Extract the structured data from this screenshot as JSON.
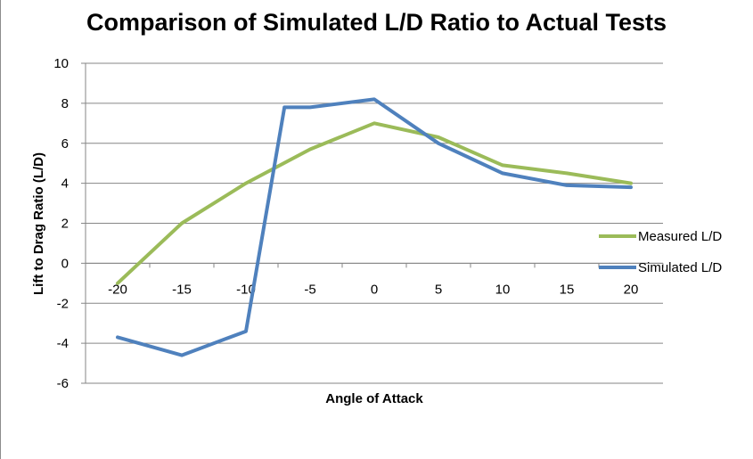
{
  "chart_data": {
    "type": "line",
    "title": "Comparison of Simulated L/D Ratio to Actual Tests",
    "xlabel": "Angle of Attack",
    "ylabel": "Lift to Drag Ratio (L/D)",
    "x": [
      -20,
      -15,
      -10,
      -5,
      0,
      5,
      10,
      15,
      20
    ],
    "ylim": [
      -6,
      10
    ],
    "yticks": [
      -6,
      -4,
      -2,
      0,
      2,
      4,
      6,
      8,
      10
    ],
    "grid": true,
    "legend_position": "right",
    "series": [
      {
        "name": "Measured L/D",
        "color": "#9BBB59",
        "x": [
          -20,
          -15,
          -10,
          -5,
          0,
          5,
          10,
          15,
          20
        ],
        "values": [
          -1.0,
          2.0,
          4.0,
          5.7,
          7.0,
          6.3,
          4.9,
          4.5,
          4.0
        ]
      },
      {
        "name": "Simulated L/D",
        "color": "#4F81BD",
        "x": [
          -20,
          -15,
          -10,
          -7,
          -5,
          0,
          5,
          10,
          15,
          20
        ],
        "values": [
          -3.7,
          -4.6,
          -3.4,
          7.8,
          7.8,
          8.2,
          6.0,
          4.5,
          3.9,
          3.8
        ]
      }
    ]
  }
}
